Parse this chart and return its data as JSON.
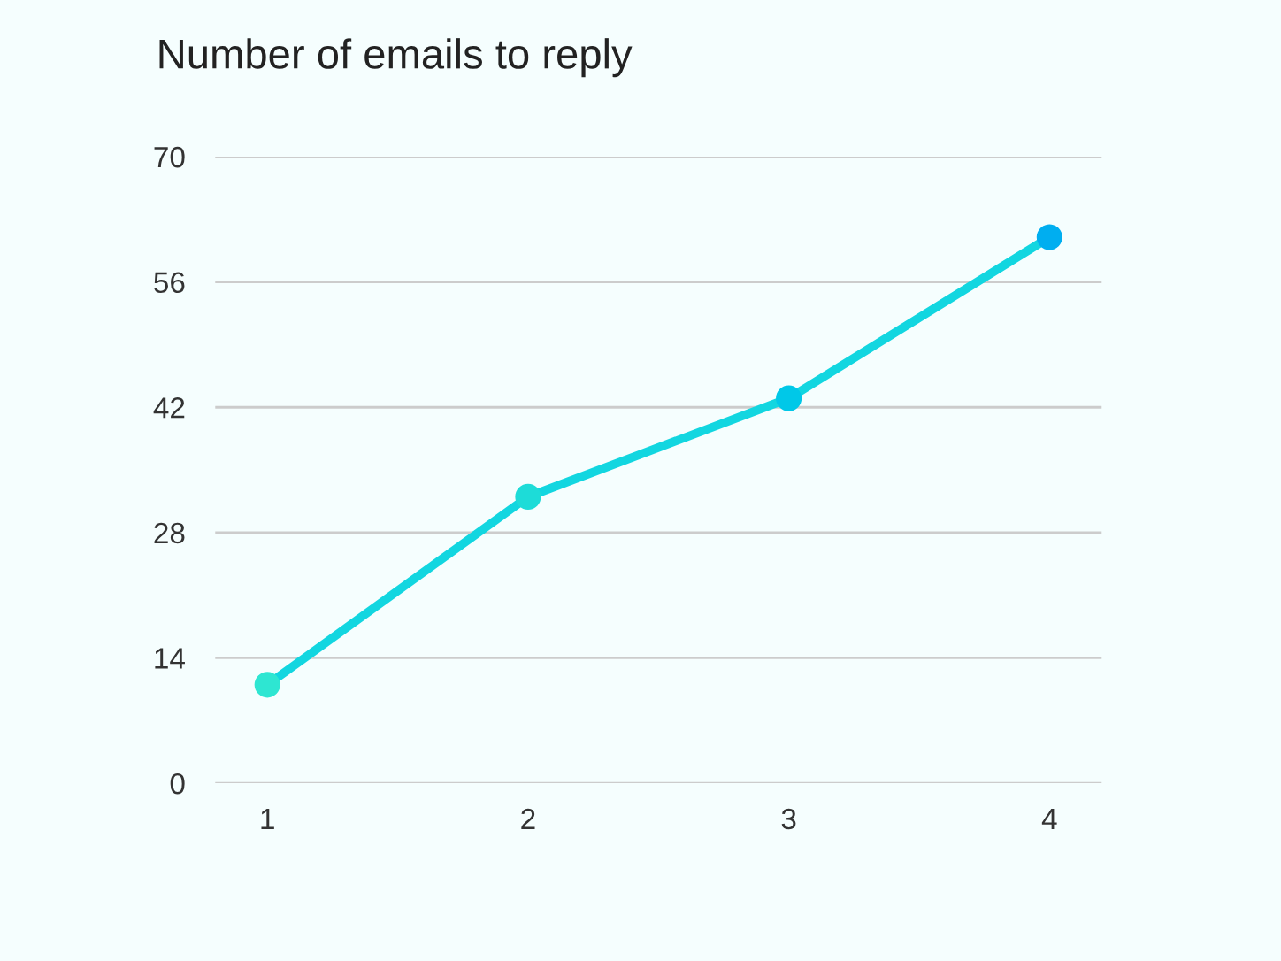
{
  "chart_data": {
    "type": "line",
    "title": "Number of emails to reply",
    "categories": [
      "1",
      "2",
      "3",
      "4"
    ],
    "series": [
      {
        "color": "#12d6e0",
        "colors": [
          "#2ee6d2",
          "#1ddcd8",
          "#00c8e8",
          "#00aef0"
        ],
        "values": [
          11,
          32,
          43,
          61
        ]
      }
    ],
    "ylim": [
      0,
      70
    ],
    "yticks": [
      0,
      14,
      28,
      42,
      56,
      70
    ],
    "grid": "y",
    "marker": "circle",
    "line_style": "solid"
  }
}
